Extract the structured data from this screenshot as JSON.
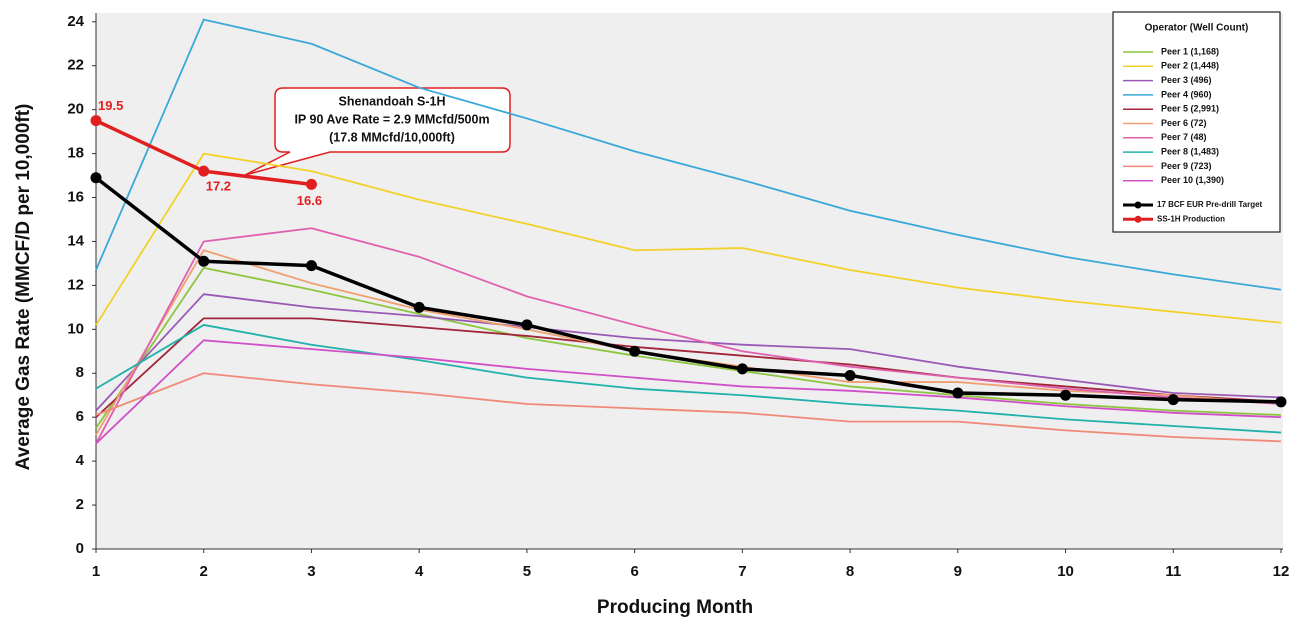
{
  "chart_data": {
    "type": "line",
    "x_label": "Producing Month",
    "y_label": "Average Gas Rate (MMCF/D per 10,000ft)",
    "x": [
      1,
      2,
      3,
      4,
      5,
      6,
      7,
      8,
      9,
      10,
      11,
      12
    ],
    "xlim": [
      1,
      12
    ],
    "xticks": [
      1,
      2,
      3,
      4,
      5,
      6,
      7,
      8,
      9,
      10,
      11,
      12
    ],
    "ylim": [
      0,
      24.4
    ],
    "yticks": [
      0,
      2,
      4,
      6,
      8,
      10,
      12,
      14,
      16,
      18,
      20,
      22,
      24
    ],
    "legend_title": "Operator (Well Count)",
    "legend_position": "top-right",
    "background": "#efefef",
    "annotations": [
      "Shenandoah S-1H",
      "IP 90 Ave Rate = 2.9 MMcfd/500m",
      "(17.8 MMcfd/10,000ft)"
    ],
    "series": [
      {
        "name": "Peer 1 (1,168)",
        "color": "#8cc63f",
        "values": [
          5.5,
          12.8,
          11.8,
          10.7,
          9.6,
          8.8,
          8.1,
          7.4,
          7.0,
          6.6,
          6.3,
          6.1
        ]
      },
      {
        "name": "Peer 2 (1,448)",
        "color": "#f2d12a",
        "values": [
          10.2,
          18.0,
          17.2,
          15.9,
          14.8,
          13.6,
          13.7,
          12.7,
          11.9,
          11.3,
          10.8,
          10.3
        ]
      },
      {
        "name": "Peer 3 (496)",
        "color": "#9b59b6",
        "values": [
          6.3,
          11.6,
          11.0,
          10.6,
          10.1,
          9.6,
          9.3,
          9.1,
          8.3,
          7.7,
          7.1,
          6.9
        ]
      },
      {
        "name": "Peer 4 (960)",
        "color": "#3aa8d8",
        "values": [
          12.7,
          24.1,
          23.0,
          21.0,
          19.6,
          18.1,
          16.8,
          15.4,
          14.3,
          13.3,
          12.5,
          11.8
        ]
      },
      {
        "name": "Peer 5 (2,991)",
        "color": "#a0263a",
        "values": [
          6.0,
          10.5,
          10.5,
          10.1,
          9.7,
          9.2,
          8.8,
          8.4,
          7.8,
          7.4,
          7.0,
          6.7
        ]
      },
      {
        "name": "Peer 6 (72)",
        "color": "#f0a070",
        "values": [
          5.2,
          13.6,
          12.1,
          10.9,
          10.0,
          9.0,
          8.3,
          7.6,
          7.6,
          7.2,
          7.0,
          6.6
        ]
      },
      {
        "name": "Peer 7 (48)",
        "color": "#e060b0",
        "values": [
          4.8,
          14.0,
          14.6,
          13.3,
          11.5,
          10.2,
          9.0,
          8.3,
          7.8,
          7.3,
          6.9,
          6.6
        ]
      },
      {
        "name": "Peer 8 (1,483)",
        "color": "#20b2aa",
        "values": [
          7.3,
          10.2,
          9.3,
          8.6,
          7.8,
          7.3,
          7.0,
          6.6,
          6.3,
          5.9,
          5.6,
          5.3
        ]
      },
      {
        "name": "Peer 9 (723)",
        "color": "#f08a78",
        "values": [
          6.1,
          8.0,
          7.5,
          7.1,
          6.6,
          6.4,
          6.2,
          5.8,
          5.8,
          5.4,
          5.1,
          4.9
        ]
      },
      {
        "name": "Peer 10 (1,390)",
        "color": "#d050c8",
        "values": [
          4.8,
          9.5,
          9.1,
          8.7,
          8.2,
          7.8,
          7.4,
          7.2,
          6.9,
          6.5,
          6.2,
          6.0
        ]
      },
      {
        "name": "17 BCF EUR Pre-drill Target",
        "color": "#000000",
        "markers": true,
        "values": [
          16.9,
          13.1,
          12.9,
          11.0,
          10.2,
          9.0,
          8.2,
          7.9,
          7.1,
          7.0,
          6.8,
          6.7
        ]
      },
      {
        "name": "SS-1H Production",
        "color": "#e02020",
        "markers": true,
        "data_labels": true,
        "values": [
          19.5,
          17.2,
          16.6,
          null,
          null,
          null,
          null,
          null,
          null,
          null,
          null,
          null
        ]
      }
    ]
  }
}
